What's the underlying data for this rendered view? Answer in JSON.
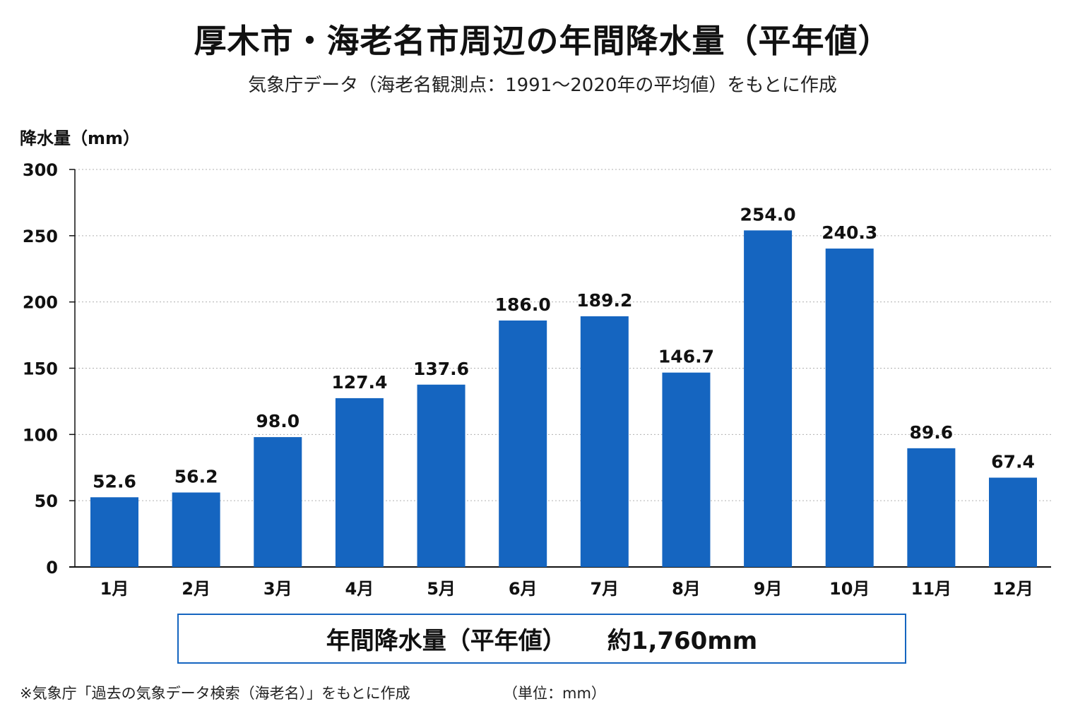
{
  "title": "厚木市・海老名市周辺の年間降水量（平年値）",
  "subtitle": "気象庁データ（海老名観測点：1991〜2020年の平均値）をもとに作成",
  "total": {
    "label": "年間降水量（平年値）",
    "value": "約1,760mm"
  },
  "footnote": "※気象庁「過去の気象データ検索（海老名）」をもとに作成",
  "unit_note": "（単位：mm）",
  "colors": {
    "bar": "#1565c0",
    "grid": "#b0b0b0",
    "axis": "#111111"
  },
  "chart_data": {
    "type": "bar",
    "ylabel": "降水量（mm）",
    "xlabel": "",
    "categories": [
      "1月",
      "2月",
      "3月",
      "4月",
      "5月",
      "6月",
      "7月",
      "8月",
      "9月",
      "10月",
      "11月",
      "12月"
    ],
    "values": [
      52.6,
      56.2,
      98.0,
      127.4,
      137.6,
      186.0,
      189.2,
      146.7,
      254.0,
      240.3,
      89.6,
      67.4
    ],
    "value_labels": [
      "52.6",
      "56.2",
      "98.0",
      "127.4",
      "137.6",
      "186.0",
      "189.2",
      "146.7",
      "254.0",
      "240.3",
      "89.6",
      "67.4"
    ],
    "ylim": [
      0,
      300
    ],
    "yticks": [
      0,
      50,
      100,
      150,
      200,
      250,
      300
    ],
    "grid": true
  }
}
